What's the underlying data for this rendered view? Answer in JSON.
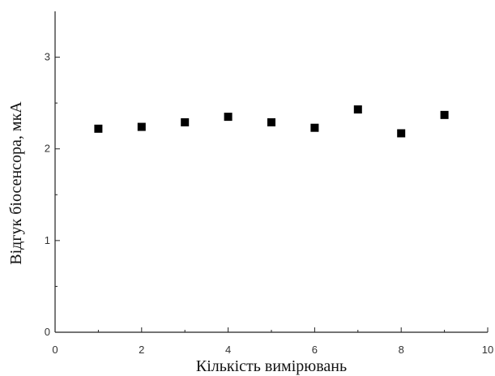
{
  "chart_data": {
    "type": "scatter",
    "xlabel": "Кількість вимірювань",
    "ylabel": "Відгук біосенсора, мкА",
    "xlim": [
      0,
      10
    ],
    "ylim": [
      0,
      3.5
    ],
    "xticks": [
      0,
      2,
      4,
      6,
      8,
      10
    ],
    "yticks": [
      0,
      1,
      2,
      3
    ],
    "grid": false,
    "marker": "square",
    "marker_color": "#000000",
    "series": [
      {
        "x": [
          1,
          2,
          3,
          4,
          5,
          6,
          7,
          8,
          9
        ],
        "y": [
          2.22,
          2.24,
          2.29,
          2.35,
          2.29,
          2.23,
          2.43,
          2.17,
          2.37
        ]
      }
    ]
  }
}
